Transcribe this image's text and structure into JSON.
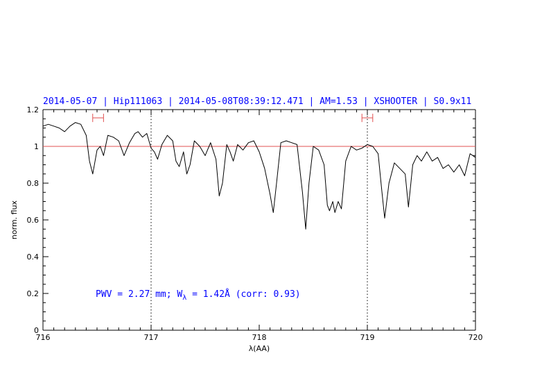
{
  "chart_data": {
    "type": "line",
    "title": "2014-05-07 | Hip111063 | 2014-05-08T08:39:12.471 | AM=1.53 | XSHOOTER | S0.9x11",
    "xlabel": "λ(AA)",
    "ylabel": "norm. flux",
    "xlim": [
      716,
      720
    ],
    "ylim": [
      0,
      1.2
    ],
    "x_ticks": [
      "716",
      "717",
      "718",
      "719",
      "720"
    ],
    "y_ticks": [
      "0",
      "0.2",
      "0.4",
      "0.6",
      "0.8",
      "1",
      "1.2"
    ],
    "annotation": {
      "prefix": "PWV = 2.27 mm; W",
      "subscript": "λ",
      "suffix": " = 1.42Å (corr: 0.93)"
    },
    "reference_line": {
      "y": 1.0,
      "color": "#e05050"
    },
    "vertical_markers": [
      717.0,
      719.0
    ],
    "range_markers": [
      {
        "x1": 716.46,
        "x2": 716.56,
        "y": 1.155
      },
      {
        "x1": 718.95,
        "x2": 719.05,
        "y": 1.155
      }
    ],
    "colors": {
      "title": "#0000ff",
      "annotation": "#0000ff",
      "spectrum": "#000000",
      "reference": "#e05050",
      "markers": "#e05050"
    },
    "series": [
      {
        "x": [
          716.0,
          716.05,
          716.1,
          716.15,
          716.2,
          716.25,
          716.3,
          716.35,
          716.4,
          716.43,
          716.46,
          716.5,
          716.53,
          716.56,
          716.6,
          716.65,
          716.7,
          716.75,
          716.8,
          716.85,
          716.88,
          716.92,
          716.96,
          717.0,
          717.03,
          717.06,
          717.1,
          717.15,
          717.2,
          717.23,
          717.26,
          717.3,
          717.33,
          717.36,
          717.4,
          717.45,
          717.5,
          717.55,
          717.6,
          717.63,
          717.66,
          717.7,
          717.73,
          717.76,
          717.8,
          717.85,
          717.9,
          717.95,
          718.0,
          718.05,
          718.1,
          718.13,
          718.16,
          718.2,
          718.25,
          718.3,
          718.35,
          718.4,
          718.43,
          718.46,
          718.5,
          718.55,
          718.6,
          718.63,
          718.65,
          718.68,
          718.7,
          718.73,
          718.76,
          718.8,
          718.85,
          718.9,
          718.95,
          719.0,
          719.05,
          719.1,
          719.13,
          719.16,
          719.2,
          719.25,
          719.3,
          719.35,
          719.38,
          719.42,
          719.46,
          719.5,
          719.55,
          719.6,
          719.65,
          719.7,
          719.75,
          719.8,
          719.85,
          719.9,
          719.95,
          720.0
        ],
        "y": [
          1.11,
          1.12,
          1.11,
          1.1,
          1.08,
          1.11,
          1.13,
          1.12,
          1.06,
          0.92,
          0.85,
          0.98,
          1.0,
          0.95,
          1.06,
          1.05,
          1.03,
          0.95,
          1.02,
          1.07,
          1.08,
          1.05,
          1.07,
          0.99,
          0.97,
          0.93,
          1.01,
          1.06,
          1.03,
          0.92,
          0.89,
          0.97,
          0.85,
          0.9,
          1.03,
          1.0,
          0.95,
          1.02,
          0.93,
          0.73,
          0.8,
          1.01,
          0.97,
          0.92,
          1.01,
          0.98,
          1.02,
          1.03,
          0.97,
          0.88,
          0.74,
          0.64,
          0.8,
          1.02,
          1.03,
          1.02,
          1.01,
          0.75,
          0.55,
          0.8,
          1.0,
          0.98,
          0.9,
          0.68,
          0.65,
          0.7,
          0.64,
          0.7,
          0.66,
          0.92,
          1.0,
          0.98,
          0.99,
          1.01,
          1.0,
          0.96,
          0.78,
          0.61,
          0.8,
          0.91,
          0.88,
          0.85,
          0.67,
          0.9,
          0.95,
          0.92,
          0.97,
          0.92,
          0.94,
          0.88,
          0.9,
          0.86,
          0.9,
          0.84,
          0.96,
          0.94
        ]
      }
    ]
  }
}
